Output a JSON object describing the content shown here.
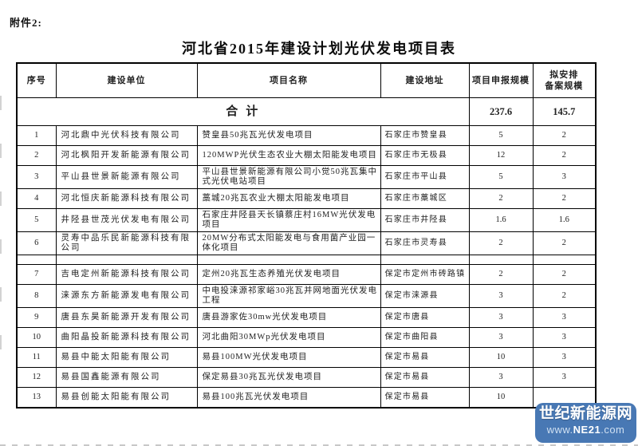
{
  "page": {
    "attachment_label": "附件2:",
    "title": "河北省2015年建设计划光伏发电项目表"
  },
  "table": {
    "columns": [
      "序号",
      "建设单位",
      "项目名称",
      "建设地址",
      "项目申报规模",
      "拟安排\n备案规模"
    ],
    "summary": {
      "label": "合计",
      "declared": "237.6",
      "approved": "145.7"
    },
    "rows": [
      {
        "no": "1",
        "company": "河北鼎中光伏科技有限公司",
        "project": "赞皇县50兆瓦光伏发电项目",
        "address": "石家庄市赞皇县",
        "declared": "5",
        "approved": "2",
        "empty": false
      },
      {
        "no": "2",
        "company": "河北枫阳开发新能源有限公司",
        "project": "120MWP光伏生态农业大棚太阳能发电项目",
        "address": "石家庄市无极县",
        "declared": "12",
        "approved": "2",
        "empty": false
      },
      {
        "no": "3",
        "company": "平山县世景新能源有限公司",
        "project": "平山县世景新能源有限公司小觉50兆瓦集中式光伏电站项目",
        "address": "石家庄市平山县",
        "declared": "5",
        "approved": "3",
        "empty": false
      },
      {
        "no": "4",
        "company": "河北恒庆新能源科技有限公司",
        "project": "藁城20兆瓦农业大棚太阳能发电项目",
        "address": "石家庄市藁城区",
        "declared": "2",
        "approved": "2",
        "empty": false
      },
      {
        "no": "5",
        "company": "井陉县世茂光伏发电有限公司",
        "project": "石家庄井陉县天长镇蔡庄村16MW光伏发电项目",
        "address": "石家庄市井陉县",
        "declared": "1.6",
        "approved": "1.6",
        "empty": false
      },
      {
        "no": "6",
        "company": "灵寿中品乐民新能源科技有限公司",
        "project": "20MW分布式太阳能发电与食用菌产业园一体化项目",
        "address": "石家庄市灵寿县",
        "declared": "2",
        "approved": "2",
        "empty": false
      },
      {
        "no": "",
        "company": "",
        "project": "",
        "address": "",
        "declared": "",
        "approved": "",
        "empty": true
      },
      {
        "no": "7",
        "company": "吉电定州新能源科技有限公司",
        "project": "定州20兆瓦生态养殖光伏发电项目",
        "address": "保定市定州市砖路镇",
        "declared": "2",
        "approved": "2",
        "empty": false
      },
      {
        "no": "8",
        "company": "涞源东方新能源发电有限公司",
        "project": "中电投涞源祁家峪30兆瓦并网地面光伏发电工程",
        "address": "保定市涞源县",
        "declared": "3",
        "approved": "2",
        "empty": false
      },
      {
        "no": "9",
        "company": "唐县东昊新能源开发有限公司",
        "project": "唐县游家佐30mw光伏发电项目",
        "address": "保定市唐县",
        "declared": "3",
        "approved": "3",
        "empty": false
      },
      {
        "no": "10",
        "company": "曲阳晶投新能源科技有限公司",
        "project": "河北曲阳30MWp光伏发电项目",
        "address": "保定市曲阳县",
        "declared": "3",
        "approved": "3",
        "empty": false
      },
      {
        "no": "11",
        "company": "易县中能太阳能有限公司",
        "project": "易县100MW光伏发电项目",
        "address": "保定市易县",
        "declared": "10",
        "approved": "3",
        "empty": false
      },
      {
        "no": "12",
        "company": "易县国鑫能源有限公司",
        "project": "保定易县30兆瓦光伏发电项目",
        "address": "保定市易县",
        "declared": "3",
        "approved": "3",
        "empty": false
      },
      {
        "no": "13",
        "company": "易县创能太阳能有限公司",
        "project": "易县100兆瓦光伏发电项目",
        "address": "保定市易县",
        "declared": "10",
        "approved": "",
        "empty": false
      }
    ]
  },
  "watermark": {
    "site_name": "世纪新能源网",
    "url_prefix": "www.",
    "url_brand": "NE21",
    "url_suffix": ".com",
    "background_color": "#4878b4",
    "name_color": "#ffffff",
    "url_color": "#cfe0f2"
  }
}
